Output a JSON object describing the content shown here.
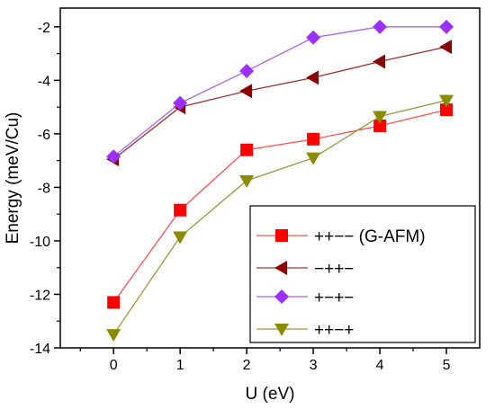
{
  "chart_data": {
    "type": "line",
    "title": "",
    "xlabel": "U (eV)",
    "ylabel": "Energy (meV/Cu)",
    "x": [
      0,
      1,
      2,
      3,
      4,
      5
    ],
    "xlim": [
      -0.8,
      5.5
    ],
    "ylim": [
      -14,
      -1.3
    ],
    "xticks": [
      0,
      1,
      2,
      3,
      4,
      5
    ],
    "yticks": [
      -14,
      -12,
      -10,
      -8,
      -6,
      -4,
      -2
    ],
    "grid": false,
    "legend_position": "bottom-right",
    "series": [
      {
        "name": "++−− (G-AFM)",
        "marker": "square",
        "color": "#ff0000",
        "line_color": "#ff5050",
        "values": [
          -12.3,
          -8.85,
          -6.6,
          -6.2,
          -5.7,
          -5.1
        ]
      },
      {
        "name": "−++−",
        "marker": "triangle-left",
        "color": "#8b0000",
        "line_color": "#9a3030",
        "values": [
          -6.95,
          -5.0,
          -4.4,
          -3.9,
          -3.3,
          -2.75
        ]
      },
      {
        "name": "+−+−",
        "marker": "diamond",
        "color": "#9b30ff",
        "line_color": "#a860ff",
        "values": [
          -6.85,
          -4.85,
          -3.65,
          -2.4,
          -2.0,
          -2.0
        ]
      },
      {
        "name": "++−+",
        "marker": "triangle-down",
        "color": "#8b8b00",
        "line_color": "#9a9a40",
        "values": [
          -13.5,
          -9.85,
          -7.75,
          -6.9,
          -5.35,
          -4.75
        ]
      }
    ]
  }
}
